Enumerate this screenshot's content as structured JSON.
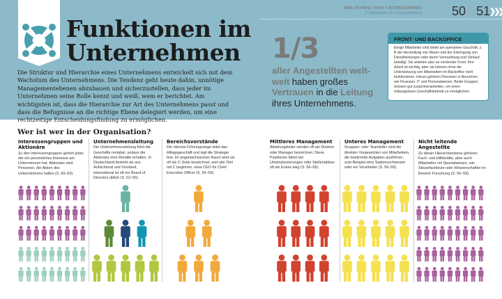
{
  "header": {
    "section": "DER AUFBAU VON UNTERNEHMEN",
    "subsection": "Funktionen im Unternehmen",
    "pages": "50",
    "pages2": "51",
    "separator": "/"
  },
  "title": {
    "line1": "Funktionen im",
    "line2": "Unternehmen",
    "icon": "people-circle-icon",
    "accent": "#4a9fae"
  },
  "intro": "Die Struktur und Hierarchie eines Unternehmens entwickelt sich mit dem Wachstum des Unternehmens. Die Tendenz geht heute dahin, unnötige Managementebenen abzubauen und sicherzustellen, dass jeder im Unternehmen seine Rolle kennt und weiß, wem er berichtet. Am wichtigsten ist, dass die Hierarchie zur Art des Unternehmens passt und dass die Befugnisse an die richtige Ebene delegiert werden, um eine rechtzeitige Entscheidungsfindung zu ermöglichen.",
  "stat": {
    "value": "1/3",
    "parts": [
      {
        "t": "aller Angestellten welt-weit ",
        "hl": true
      },
      {
        "t": "haben großes ",
        "hl": false
      },
      {
        "t": "Vertrauen ",
        "hl": true
      },
      {
        "t": "in die ",
        "hl": false
      },
      {
        "t": "Leitung ",
        "hl": true
      },
      {
        "t": "ihres Unternehmens.",
        "hl": false
      }
    ]
  },
  "box": {
    "title": "FRONT- UND BACKOFFICE",
    "text": "Einige Mitarbeiter sind direkt am operativen Geschäft, z. B der Herstellung von Waren und der Erbringung von Dienstleistungen oder deren Vermarktung und Verkauf, beteiligt. Sie arbeiten also an vorderster Front. Ihre Arbeit ist wichtig, aber sie können ohne die Unterstützung von Mitarbeitern im Backoffice nicht funktionieren. Hierzu gehören Personen in Bereichen wie Finanzen, IT und Personalwesen. Beide Gruppen müssen gut zusammenarbeiten, um einen reibungslosen Geschäftsbetrieb zu ermöglichen."
  },
  "section_title": "Wer ist wer in der Organisation?",
  "columns": [
    {
      "title": "Interessengruppen und Aktionäre",
      "text": "Zu den Interessengruppen gehört jeder, der ein persönliches Interesse am Unternehmen hat. Aktionäre sind Personen, die Aktien des Unternehmens halten (S. 60–63).",
      "rows": [
        {
          "n": 9,
          "c": "#a8629e"
        },
        {
          "n": 9,
          "c": "#a8629e"
        },
        {
          "n": 9,
          "c": "#a8629e"
        },
        {
          "n": 9,
          "c": "#9fd0bd"
        },
        {
          "n": 9,
          "c": "#9fd0bd"
        }
      ]
    },
    {
      "title": "Unternehmensleitung",
      "text": "Die Unternehmensleitung führt die Geschäfte rentabel, sodass die Aktionäre eine Rendite erhalten. In Deutschland besteht sie aus Aufsichtsrat und Vorstand, international ist oft ein Board of Directors üblich (S. 52–55).",
      "rows": [
        {
          "c": [
            "#6bb3a5"
          ]
        },
        {
          "c": [
            "#5e8a36",
            "#254a7a",
            "#1295b2"
          ]
        },
        {
          "c": [
            "#b2c73f",
            "#b2c73f",
            "#b2c73f",
            "#b2c73f",
            "#b2c73f"
          ]
        }
      ]
    },
    {
      "title": "Bereichsvorstände",
      "text": "Die oberste Führungsriege leitet das Alltagsgeschäft und legt die Strategie fest. Im angelsächsischen Raum wird sie oft als C-Suite bezeichnet, weil alle Titel mit C beginnen, etwa CEO für Chief Executive Officer (S. 56–59).",
      "rows": [
        {
          "n": 1,
          "c": "#f2a93b"
        },
        {
          "n": 2,
          "c": "#f2a93b"
        },
        {
          "n": 3,
          "c": "#f2a93b"
        }
      ]
    },
    {
      "title": "Mittleres Management",
      "text": "Abteilungsleiter werden oft als Direktor oder Manager bezeichnet. Diese Positionen fallen bei Umstrukturierungen oder Stellenabbau oft als Erstes weg (S. 56–59).",
      "rows": [
        {
          "n": 4,
          "c": "#d0432f"
        },
        {
          "n": 4,
          "c": "#d0432f"
        },
        {
          "n": 4,
          "c": "#d0432f"
        }
      ]
    },
    {
      "title": "Unteres Management",
      "text": "Gruppen- oder Teamleiter sind die direkten Vorgesetzten von Mitarbeitern, die bestimmte Aufgaben ausführen, zum Beispiel eine Stationsschwester oder ein Vorarbeiter (S. 56–59).",
      "rows": [
        {
          "n": 5,
          "c": "#f5e04f"
        },
        {
          "n": 5,
          "c": "#f5e04f"
        },
        {
          "n": 5,
          "c": "#f5e04f"
        }
      ]
    },
    {
      "title": "Nicht leitende Angestellte",
      "text": "Zu dieser Hierarchieebene gehören Fach- und Hilfskräfte, aber auch Mitarbeiter mit Spezialwissen, wie Steuerfachleute oder Wissenschaftler im Bereich Forschung (S. 56–59).",
      "rows": [
        {
          "n": 9,
          "c": "#a8629e"
        },
        {
          "n": 9,
          "c": "#a8629e"
        },
        {
          "n": 9,
          "c": "#a8629e"
        },
        {
          "n": 9,
          "c": "#a8629e"
        },
        {
          "n": 9,
          "c": "#a8629e"
        }
      ]
    }
  ]
}
